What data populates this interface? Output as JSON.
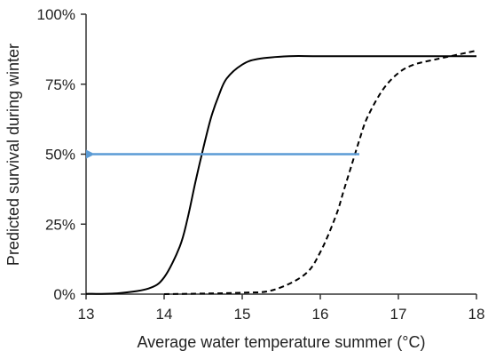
{
  "chart_data": {
    "type": "line",
    "xlabel": "Average water temperature summer (°C)",
    "ylabel": "Predicted survival during winter",
    "xlim": [
      13,
      18
    ],
    "ylim": [
      0,
      100
    ],
    "x_ticks": [
      "13",
      "14",
      "15",
      "16",
      "17",
      "18"
    ],
    "y_ticks": [
      "0%",
      "25%",
      "50%",
      "75%",
      "100%"
    ],
    "grid": false,
    "legend": "none",
    "series": [
      {
        "style": "solid",
        "color": "#000000",
        "x": [
          13.0,
          13.4,
          13.8,
          14.0,
          14.2,
          14.3,
          14.4,
          14.5,
          14.6,
          14.7,
          14.8,
          15.0,
          15.2,
          15.6,
          16.0,
          17.0,
          18.0
        ],
        "y": [
          0.1,
          0.3,
          2,
          6,
          17,
          27,
          40,
          52,
          63,
          71,
          77,
          82,
          84,
          85,
          85,
          85,
          85
        ]
      },
      {
        "style": "dashed",
        "color": "#000000",
        "x": [
          14.0,
          15.0,
          15.4,
          15.8,
          16.0,
          16.2,
          16.3,
          16.4,
          16.5,
          16.6,
          16.8,
          17.0,
          17.2,
          17.5,
          18.0
        ],
        "y": [
          0,
          0.5,
          1.5,
          7,
          15,
          28,
          37,
          46,
          55,
          63,
          73,
          79,
          82,
          84,
          87
        ]
      }
    ],
    "annotations": [
      {
        "type": "arrow",
        "color": "#5b9bd5",
        "from": [
          16.5,
          50
        ],
        "to": [
          13.0,
          50
        ]
      }
    ]
  }
}
